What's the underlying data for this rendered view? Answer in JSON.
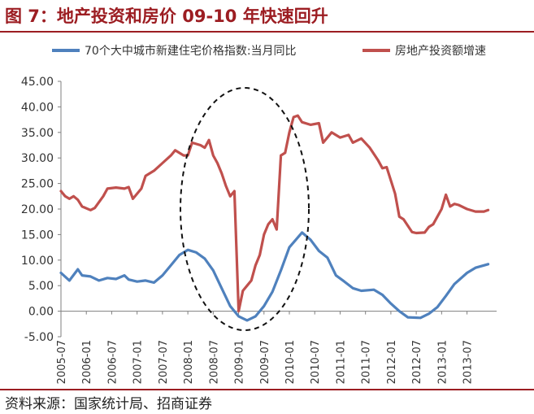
{
  "header": {
    "title": "图 7：地产投资和房价 09-10 年快速回升"
  },
  "footer": {
    "source": "资料来源：国家统计局、招商证券"
  },
  "chart_data": {
    "type": "line",
    "ylim": [
      -5,
      45
    ],
    "yticks": [
      -5,
      0,
      5,
      10,
      15,
      20,
      25,
      30,
      35,
      40,
      45
    ],
    "ytick_labels": [
      "-5.00",
      "0.00",
      "5.00",
      "10.00",
      "15.00",
      "20.00",
      "25.00",
      "30.00",
      "35.00",
      "40.00",
      "45.00"
    ],
    "x_start": "2005-07",
    "x_end": "2014-02",
    "xtick_labels": [
      "2005-07",
      "2006-01",
      "2006-07",
      "2007-01",
      "2007-07",
      "2008-01",
      "2008-07",
      "2009-01",
      "2009-07",
      "2010-01",
      "2010-07",
      "2011-01",
      "2011-07",
      "2012-01",
      "2012-07",
      "2013-01",
      "2013-07"
    ],
    "grid": false,
    "legend_position": "top",
    "annotation": "dashed-ellipse around 2008-2009",
    "series": [
      {
        "name": "70个大中城市新建住宅价格指数:当月同比",
        "color": "#4f81bd",
        "points": [
          [
            "2005-07",
            7.5
          ],
          [
            "2005-09",
            6.0
          ],
          [
            "2005-11",
            8.2
          ],
          [
            "2005-12",
            7.0
          ],
          [
            "2006-02",
            6.8
          ],
          [
            "2006-04",
            6.0
          ],
          [
            "2006-06",
            6.5
          ],
          [
            "2006-08",
            6.3
          ],
          [
            "2006-10",
            7.0
          ],
          [
            "2006-11",
            6.2
          ],
          [
            "2007-01",
            5.8
          ],
          [
            "2007-03",
            6.0
          ],
          [
            "2007-05",
            5.6
          ],
          [
            "2007-07",
            7.0
          ],
          [
            "2007-09",
            9.0
          ],
          [
            "2007-11",
            11.0
          ],
          [
            "2007-12",
            11.5
          ],
          [
            "2008-01",
            12.0
          ],
          [
            "2008-03",
            11.5
          ],
          [
            "2008-05",
            10.3
          ],
          [
            "2008-07",
            8.0
          ],
          [
            "2008-09",
            4.5
          ],
          [
            "2008-11",
            1.0
          ],
          [
            "2009-01",
            -1.0
          ],
          [
            "2009-03",
            -1.8
          ],
          [
            "2009-05",
            -1.0
          ],
          [
            "2009-07",
            1.0
          ],
          [
            "2009-09",
            3.8
          ],
          [
            "2009-11",
            8.0
          ],
          [
            "2010-01",
            12.5
          ],
          [
            "2010-04",
            15.4
          ],
          [
            "2010-06",
            14.0
          ],
          [
            "2010-08",
            11.8
          ],
          [
            "2010-10",
            10.5
          ],
          [
            "2010-12",
            7.0
          ],
          [
            "2011-02",
            5.8
          ],
          [
            "2011-04",
            4.5
          ],
          [
            "2011-06",
            4.0
          ],
          [
            "2011-09",
            4.2
          ],
          [
            "2011-11",
            3.2
          ],
          [
            "2012-01",
            1.5
          ],
          [
            "2012-03",
            0.0
          ],
          [
            "2012-05",
            -1.2
          ],
          [
            "2012-08",
            -1.3
          ],
          [
            "2012-10",
            -0.5
          ],
          [
            "2012-12",
            0.8
          ],
          [
            "2013-02",
            3.0
          ],
          [
            "2013-04",
            5.3
          ],
          [
            "2013-07",
            7.5
          ],
          [
            "2013-09",
            8.5
          ],
          [
            "2013-12",
            9.2
          ]
        ]
      },
      {
        "name": "房地产投资额增速",
        "color": "#c0504d",
        "points": [
          [
            "2005-07",
            23.5
          ],
          [
            "2005-08",
            22.5
          ],
          [
            "2005-09",
            22.0
          ],
          [
            "2005-10",
            22.5
          ],
          [
            "2005-11",
            21.8
          ],
          [
            "2005-12",
            20.5
          ],
          [
            "2006-02",
            19.8
          ],
          [
            "2006-03",
            20.2
          ],
          [
            "2006-05",
            22.5
          ],
          [
            "2006-06",
            24.0
          ],
          [
            "2006-08",
            24.2
          ],
          [
            "2006-10",
            24.0
          ],
          [
            "2006-11",
            24.3
          ],
          [
            "2006-12",
            22.0
          ],
          [
            "2007-02",
            24.0
          ],
          [
            "2007-03",
            26.5
          ],
          [
            "2007-05",
            27.5
          ],
          [
            "2007-07",
            29.0
          ],
          [
            "2007-09",
            30.5
          ],
          [
            "2007-10",
            31.5
          ],
          [
            "2007-12",
            30.5
          ],
          [
            "2008-01",
            30.5
          ],
          [
            "2008-02",
            33.0
          ],
          [
            "2008-04",
            32.5
          ],
          [
            "2008-05",
            32.0
          ],
          [
            "2008-06",
            33.5
          ],
          [
            "2008-07",
            30.5
          ],
          [
            "2008-08",
            29.0
          ],
          [
            "2008-09",
            27.0
          ],
          [
            "2008-10",
            24.5
          ],
          [
            "2008-11",
            22.5
          ],
          [
            "2008-12",
            23.5
          ],
          [
            "2009-01",
            0.0
          ],
          [
            "2009-02",
            4.0
          ],
          [
            "2009-03",
            5.0
          ],
          [
            "2009-04",
            6.0
          ],
          [
            "2009-05",
            9.0
          ],
          [
            "2009-06",
            11.0
          ],
          [
            "2009-07",
            15.0
          ],
          [
            "2009-08",
            17.0
          ],
          [
            "2009-09",
            18.0
          ],
          [
            "2009-10",
            16.0
          ],
          [
            "2009-11",
            30.5
          ],
          [
            "2009-12",
            31.0
          ],
          [
            "2010-01",
            35.0
          ],
          [
            "2010-02",
            38.0
          ],
          [
            "2010-03",
            38.3
          ],
          [
            "2010-04",
            37.0
          ],
          [
            "2010-06",
            36.5
          ],
          [
            "2010-08",
            36.8
          ],
          [
            "2010-09",
            33.0
          ],
          [
            "2010-11",
            35.0
          ],
          [
            "2011-01",
            34.0
          ],
          [
            "2011-03",
            34.5
          ],
          [
            "2011-04",
            33.0
          ],
          [
            "2011-06",
            33.8
          ],
          [
            "2011-08",
            32.0
          ],
          [
            "2011-10",
            29.5
          ],
          [
            "2011-11",
            28.0
          ],
          [
            "2011-12",
            28.2
          ],
          [
            "2012-02",
            23.0
          ],
          [
            "2012-03",
            18.5
          ],
          [
            "2012-04",
            18.0
          ],
          [
            "2012-06",
            15.5
          ],
          [
            "2012-07",
            15.3
          ],
          [
            "2012-09",
            15.4
          ],
          [
            "2012-10",
            16.5
          ],
          [
            "2012-11",
            17.0
          ],
          [
            "2013-01",
            20.0
          ],
          [
            "2013-02",
            22.8
          ],
          [
            "2013-03",
            20.5
          ],
          [
            "2013-04",
            21.0
          ],
          [
            "2013-05",
            20.8
          ],
          [
            "2013-07",
            20.0
          ],
          [
            "2013-09",
            19.5
          ],
          [
            "2013-11",
            19.5
          ],
          [
            "2013-12",
            19.8
          ]
        ]
      }
    ]
  }
}
